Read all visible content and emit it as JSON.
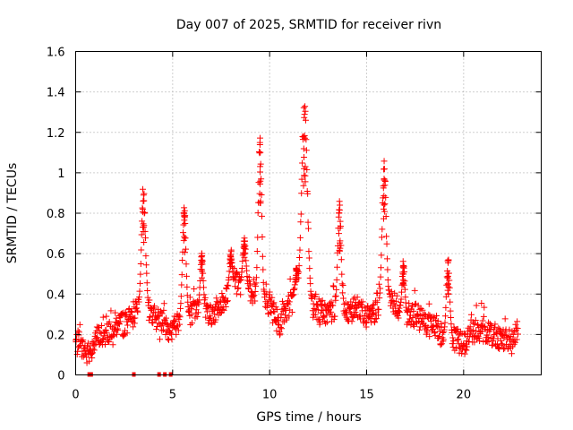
{
  "chart_data": {
    "type": "scatter",
    "title": "Day 007 of 2025, SRMTID for receiver rivn",
    "xlabel": "GPS time / hours",
    "ylabel": "SRMTID / TECUs",
    "xlim": [
      0,
      24
    ],
    "ylim": [
      0,
      1.6
    ],
    "xticks": [
      0,
      5,
      10,
      15,
      20
    ],
    "yticks": [
      0,
      0.2,
      0.4,
      0.6,
      0.8,
      1,
      1.2,
      1.4,
      1.6
    ],
    "ytick_labels": [
      "0",
      "0.2",
      "0.4",
      "0.6",
      "0.8",
      "1",
      "1.2",
      "1.4",
      "1.6"
    ],
    "grid": true,
    "marker": "+",
    "series": [
      {
        "name": "SRMTID",
        "color": "#ff0000",
        "baseline": [
          [
            0.0,
            0.16
          ],
          [
            0.7,
            0.1
          ],
          [
            1.0,
            0.18
          ],
          [
            1.5,
            0.2
          ],
          [
            2.0,
            0.25
          ],
          [
            2.5,
            0.25
          ],
          [
            3.0,
            0.3
          ],
          [
            3.5,
            0.33
          ],
          [
            4.0,
            0.3
          ],
          [
            4.5,
            0.25
          ],
          [
            5.0,
            0.22
          ],
          [
            5.5,
            0.32
          ],
          [
            6.0,
            0.3
          ],
          [
            6.5,
            0.35
          ],
          [
            7.0,
            0.3
          ],
          [
            7.5,
            0.34
          ],
          [
            8.0,
            0.45
          ],
          [
            8.5,
            0.45
          ],
          [
            9.0,
            0.42
          ],
          [
            9.5,
            0.4
          ],
          [
            10.0,
            0.35
          ],
          [
            10.5,
            0.25
          ],
          [
            11.0,
            0.35
          ],
          [
            11.5,
            0.4
          ],
          [
            12.0,
            0.35
          ],
          [
            12.5,
            0.32
          ],
          [
            13.0,
            0.3
          ],
          [
            13.5,
            0.35
          ],
          [
            14.0,
            0.3
          ],
          [
            14.5,
            0.35
          ],
          [
            15.0,
            0.28
          ],
          [
            15.5,
            0.32
          ],
          [
            16.0,
            0.4
          ],
          [
            16.5,
            0.35
          ],
          [
            17.0,
            0.3
          ],
          [
            17.5,
            0.3
          ],
          [
            18.0,
            0.25
          ],
          [
            18.5,
            0.22
          ],
          [
            19.0,
            0.2
          ],
          [
            19.5,
            0.18
          ],
          [
            20.0,
            0.15
          ],
          [
            20.5,
            0.22
          ],
          [
            21.0,
            0.22
          ],
          [
            21.5,
            0.2
          ],
          [
            22.0,
            0.18
          ],
          [
            22.5,
            0.16
          ],
          [
            22.8,
            0.22
          ]
        ],
        "peaks": [
          {
            "x": 3.5,
            "y": 0.92,
            "width": 0.15
          },
          {
            "x": 5.6,
            "y": 0.84,
            "width": 0.12
          },
          {
            "x": 8.0,
            "y": 0.62,
            "width": 0.1
          },
          {
            "x": 8.7,
            "y": 0.68,
            "width": 0.12
          },
          {
            "x": 9.5,
            "y": 1.21,
            "width": 0.12
          },
          {
            "x": 11.8,
            "y": 1.4,
            "width": 0.2
          },
          {
            "x": 13.6,
            "y": 0.87,
            "width": 0.12
          },
          {
            "x": 15.9,
            "y": 1.07,
            "width": 0.14
          },
          {
            "x": 16.9,
            "y": 0.57,
            "width": 0.1
          },
          {
            "x": 19.2,
            "y": 0.59,
            "width": 0.12
          },
          {
            "x": 6.5,
            "y": 0.61,
            "width": 0.1
          },
          {
            "x": 11.4,
            "y": 0.53,
            "width": 0.12
          }
        ],
        "zero_points": [
          0.7,
          0.8,
          3.0,
          4.3,
          4.6,
          4.9
        ],
        "x_range": [
          0.0,
          22.8
        ],
        "spread": 0.06
      }
    ]
  }
}
